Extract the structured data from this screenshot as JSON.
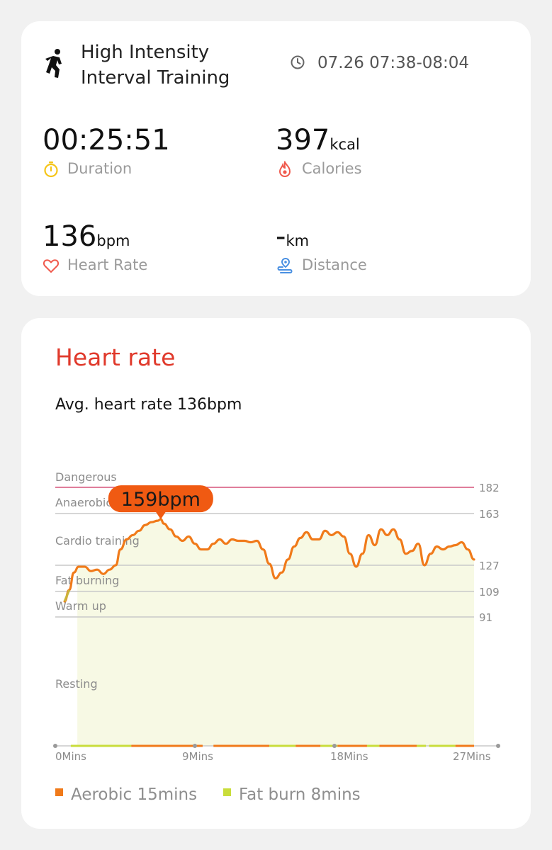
{
  "workout": {
    "title": "High Intensity Interval Training",
    "time_range": "07.26 07:38-08:04",
    "icon": "running-person-icon"
  },
  "metrics": {
    "duration": {
      "value": "00:25:51",
      "unit": "",
      "label": "Duration",
      "icon": "stopwatch-icon",
      "icon_color": "#f5c518"
    },
    "calories": {
      "value": "397",
      "unit": "kcal",
      "label": "Calories",
      "icon": "flame-icon",
      "icon_color": "#f0594c"
    },
    "heart_rate": {
      "value": "136",
      "unit": "bpm",
      "label": "Heart Rate",
      "icon": "heart-icon",
      "icon_color": "#f0594c"
    },
    "distance": {
      "value": "-",
      "unit": "km",
      "label": "Distance",
      "icon": "location-pin-icon",
      "icon_color": "#4a90e2"
    }
  },
  "heart_rate_section": {
    "title": "Heart rate",
    "avg_text": "Avg. heart rate 136bpm",
    "peak_label": "159bpm",
    "legend": [
      {
        "label": "Aerobic 15mins",
        "color": "#f07a1a"
      },
      {
        "label": "Fat burn 8mins",
        "color": "#c9dd3b"
      }
    ]
  },
  "colors": {
    "accent_red": "#e0392b",
    "line_orange": "#f07a1a",
    "dangerous_line": "#d6547a",
    "area_fill": "#f7f9e4"
  },
  "chart_data": {
    "type": "area",
    "x_unit": "mins",
    "xlim": [
      0,
      27
    ],
    "ylim": [
      0,
      182
    ],
    "x_ticks": [
      {
        "value": 0,
        "label": "0Mins"
      },
      {
        "value": 9,
        "label": "9Mins"
      },
      {
        "value": 18,
        "label": "18Mins"
      },
      {
        "value": 27,
        "label": "27Mins"
      }
    ],
    "zones": [
      {
        "name": "Dangerous",
        "threshold": 182
      },
      {
        "name": "Anaerobic",
        "threshold": 163
      },
      {
        "name": "Cardio training",
        "threshold": 127
      },
      {
        "name": "Fat burning",
        "threshold": 109
      },
      {
        "name": "Warm up",
        "threshold": 91
      },
      {
        "name": "Resting",
        "threshold": null
      }
    ],
    "y_ticks": [
      182,
      163,
      127,
      109,
      91
    ],
    "peak": {
      "x": 6.8,
      "y": 159
    },
    "series": [
      {
        "x": [
          0.6,
          0.9,
          1.2,
          1.5,
          1.9,
          2.3,
          2.7,
          3.1,
          3.5,
          3.9,
          4.2,
          4.6,
          5.0,
          5.4,
          5.8,
          6.2,
          6.6,
          6.8,
          7.0,
          7.4,
          7.8,
          8.2,
          8.6,
          9.0,
          9.4,
          9.8,
          10.2,
          10.6,
          11.0,
          11.4,
          11.8,
          12.2,
          12.6,
          13.0,
          13.4,
          13.8,
          14.2,
          14.6,
          15.0,
          15.4,
          15.8,
          16.2,
          16.6,
          17.0,
          17.4,
          17.8,
          18.2,
          18.6,
          19.0,
          19.4,
          19.8,
          20.2,
          20.6,
          21.0,
          21.4,
          21.8,
          22.2,
          22.6,
          23.0,
          23.4,
          23.8,
          24.2,
          24.6,
          25.0,
          25.4,
          25.8,
          26.2,
          26.6,
          27.0
        ],
        "y": [
          102,
          110,
          122,
          126,
          126,
          123,
          124,
          121,
          124,
          127,
          138,
          145,
          148,
          151,
          155,
          157,
          158,
          159,
          156,
          152,
          147,
          144,
          147,
          142,
          138,
          138,
          142,
          145,
          142,
          145,
          144,
          144,
          143,
          144,
          138,
          128,
          118,
          122,
          131,
          140,
          146,
          150,
          145,
          145,
          151,
          148,
          150,
          147,
          135,
          126,
          135,
          148,
          141,
          152,
          148,
          152,
          145,
          135,
          137,
          142,
          127,
          135,
          140,
          138,
          140,
          141,
          143,
          138,
          131
        ]
      }
    ],
    "grid": true
  }
}
